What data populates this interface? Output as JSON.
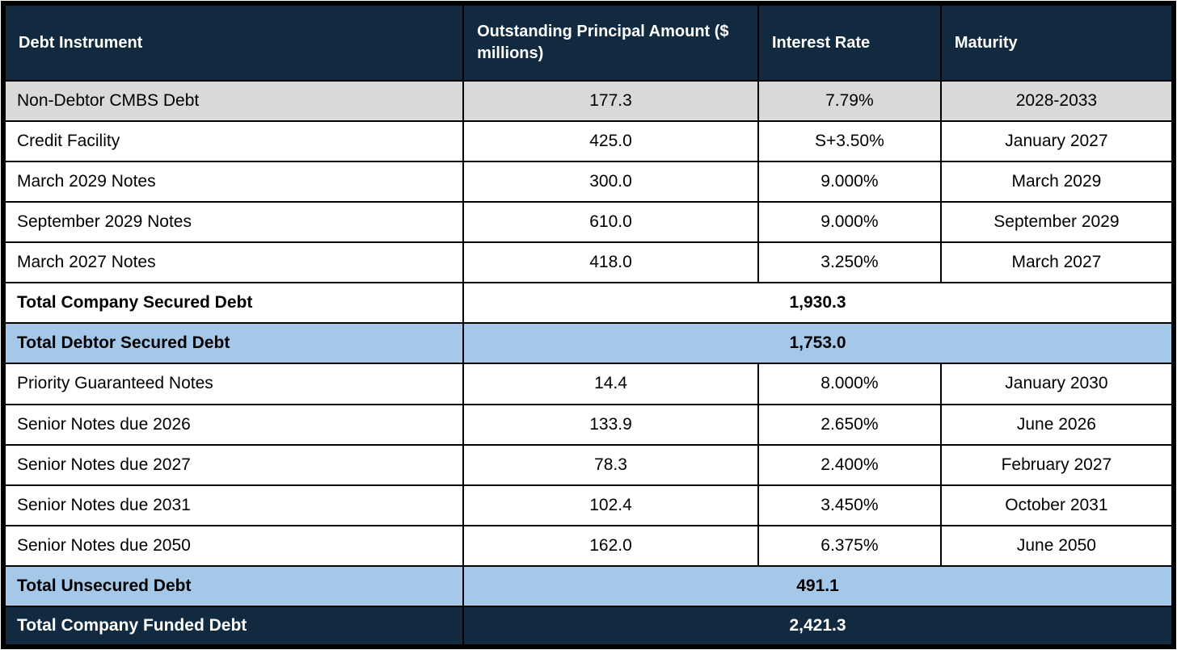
{
  "colors": {
    "header_bg": "#122A40",
    "total_blue_bg": "#A5C8E9",
    "first_row_gray_bg": "#D9D9D9",
    "border": "#000000",
    "header_text": "#FFFFFF",
    "body_text": "#000000"
  },
  "table": {
    "columns": [
      {
        "label": "Debt Instrument"
      },
      {
        "label": "Outstanding Principal Amount ($ millions)"
      },
      {
        "label": "Interest Rate"
      },
      {
        "label": "Maturity"
      }
    ],
    "rows": [
      {
        "style": "gray",
        "cells": [
          "Non-Debtor CMBS Debt",
          "177.3",
          "7.79%",
          "2028-2033"
        ]
      },
      {
        "style": "white",
        "cells": [
          "Credit Facility",
          "425.0",
          "S+3.50%",
          "January 2027"
        ]
      },
      {
        "style": "white",
        "cells": [
          "March 2029 Notes",
          "300.0",
          "9.000%",
          "March 2029"
        ]
      },
      {
        "style": "white",
        "cells": [
          "September 2029 Notes",
          "610.0",
          "9.000%",
          "September 2029"
        ]
      },
      {
        "style": "white",
        "cells": [
          "March 2027 Notes",
          "418.0",
          "3.250%",
          "March 2027"
        ]
      },
      {
        "style": "total-white",
        "merged": true,
        "label": "Total Company Secured Debt",
        "value": "1,930.3"
      },
      {
        "style": "total-blue",
        "merged": true,
        "label": "Total Debtor Secured Debt",
        "value": "1,753.0"
      },
      {
        "style": "white",
        "cells": [
          "Priority Guaranteed Notes",
          "14.4",
          "8.000%",
          "January 2030"
        ]
      },
      {
        "style": "white",
        "cells": [
          "Senior Notes due 2026",
          "133.9",
          "2.650%",
          "June 2026"
        ]
      },
      {
        "style": "white",
        "cells": [
          "Senior Notes due 2027",
          "78.3",
          "2.400%",
          "February 2027"
        ]
      },
      {
        "style": "white",
        "cells": [
          "Senior Notes due 2031",
          "102.4",
          "3.450%",
          "October 2031"
        ]
      },
      {
        "style": "white",
        "cells": [
          "Senior Notes due 2050",
          "162.0",
          "6.375%",
          "June 2050"
        ]
      },
      {
        "style": "total-blue",
        "merged": true,
        "label": "Total Unsecured Debt",
        "value": "491.1"
      },
      {
        "style": "total-navy",
        "merged": true,
        "label": "Total Company Funded Debt",
        "value": "2,421.3"
      }
    ]
  }
}
